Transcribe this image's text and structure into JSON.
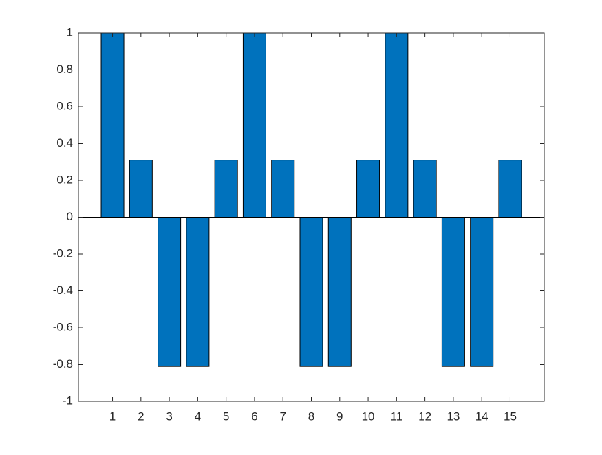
{
  "chart_data": {
    "type": "bar",
    "x": [
      1,
      2,
      3,
      4,
      5,
      6,
      7,
      8,
      9,
      10,
      11,
      12,
      13,
      14,
      15
    ],
    "values": [
      1,
      0.31,
      -0.81,
      -0.81,
      0.31,
      1,
      0.31,
      -0.81,
      -0.81,
      0.31,
      1,
      0.31,
      -0.81,
      -0.81,
      0.31
    ],
    "color": "#0072bd",
    "xlim": [
      -0.2,
      16.2
    ],
    "xticks": [
      1,
      2,
      3,
      4,
      5,
      6,
      7,
      8,
      9,
      10,
      11,
      12,
      13,
      14,
      15
    ],
    "ylim": [
      -1,
      1
    ],
    "yticks": [
      -1,
      -0.8,
      -0.6,
      -0.4,
      -0.2,
      0,
      0.2,
      0.4,
      0.6,
      0.8,
      1
    ],
    "grid": false
  }
}
